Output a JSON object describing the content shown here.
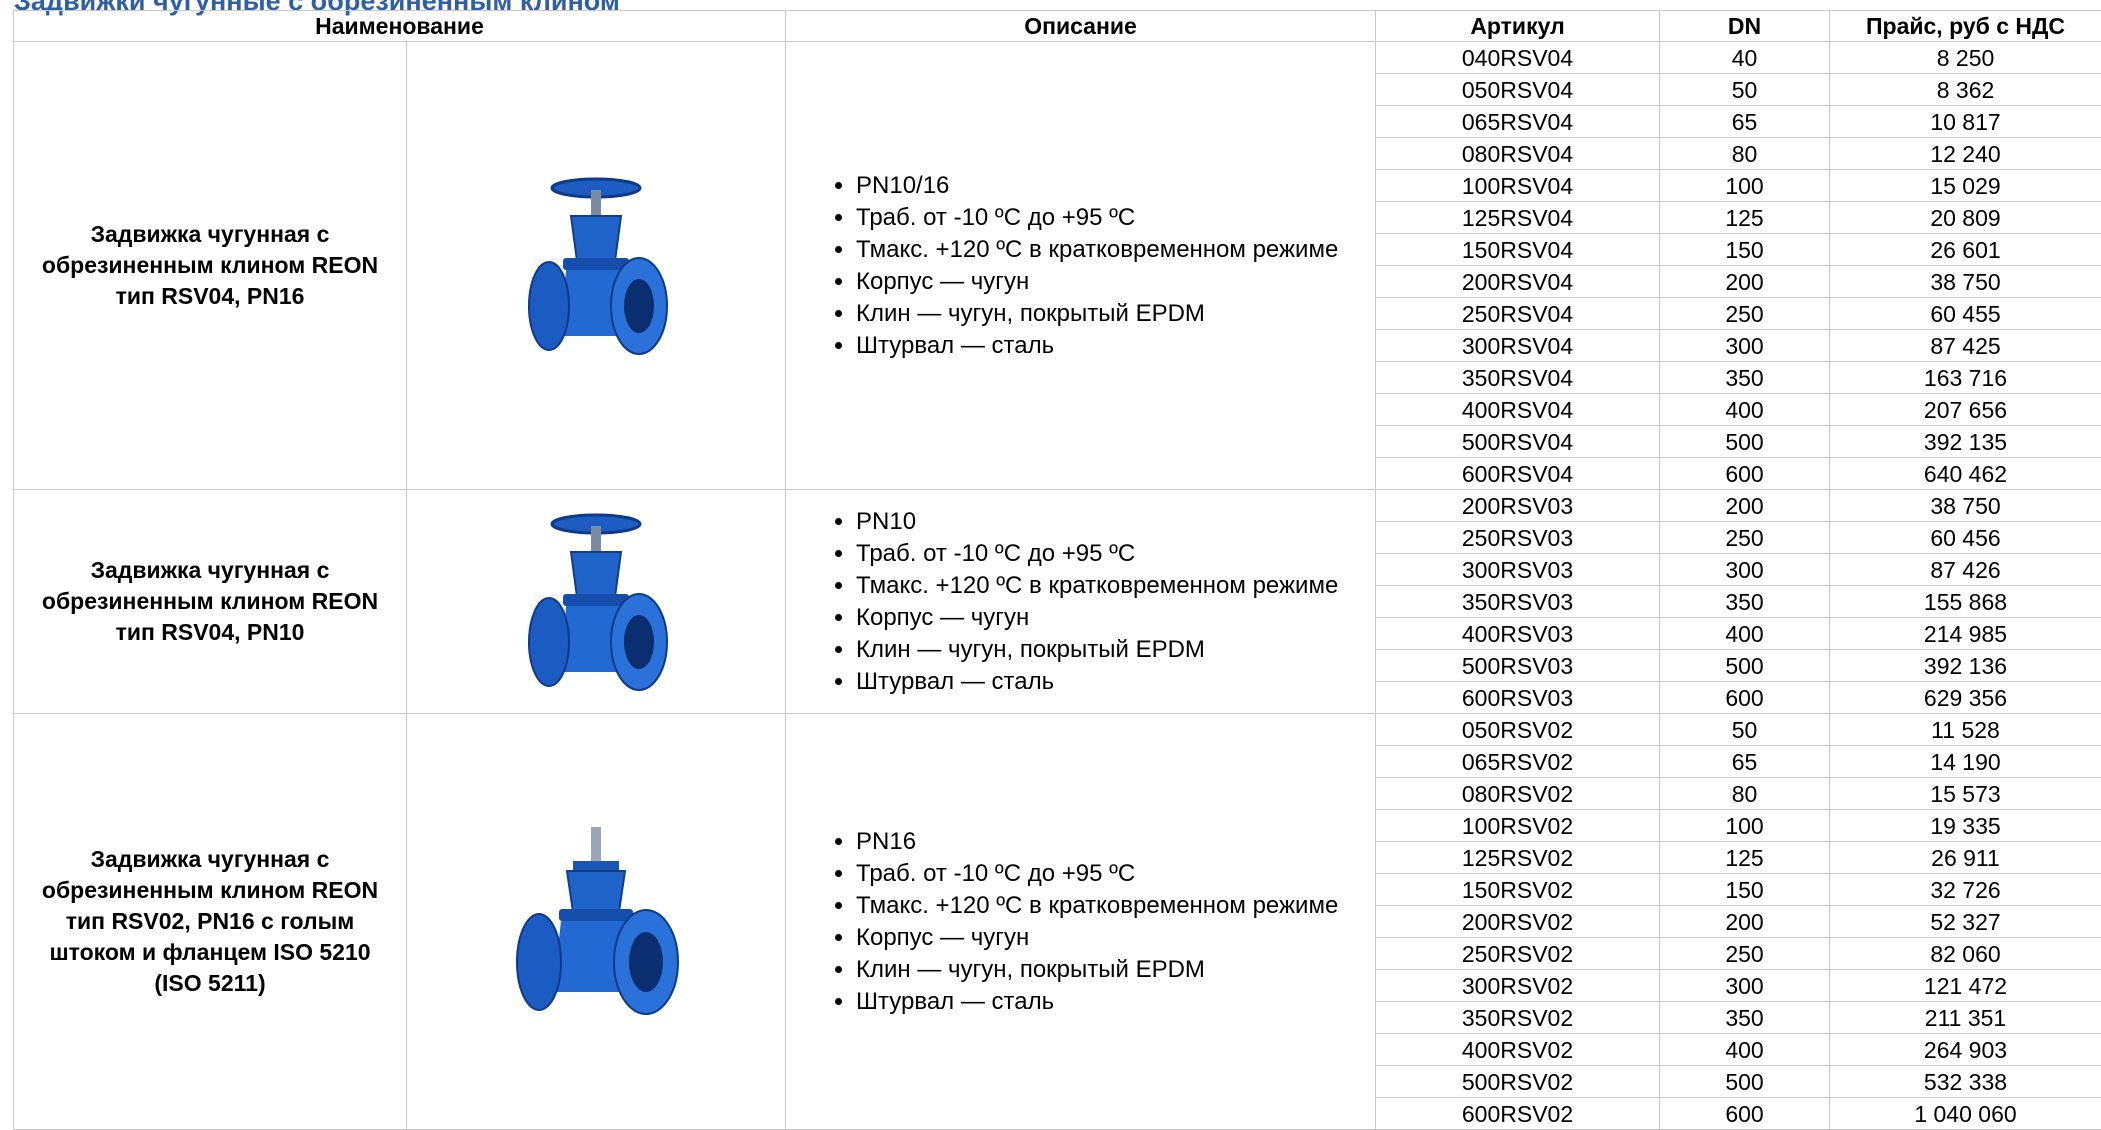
{
  "header": {
    "title": "Задвижки чугунные с обрезиненным клином"
  },
  "table": {
    "columns": [
      "Наименование",
      "Описание",
      "Артикул",
      "DN",
      "Прайс, руб с НДС"
    ],
    "groups": [
      {
        "name": "Задвижка чугунная с обрезиненным клином REON тип RSV04, PN16",
        "description": [
          "PN10/16",
          "Траб. от -10 ºС до +95 ºС",
          "Тмакс. +120 ºС в кратковременном режиме",
          "Корпус — чугун",
          "Клин — чугун, покрытый EPDM",
          "Штурвал — сталь"
        ],
        "rows": [
          [
            "040RSV04",
            40,
            "8 250"
          ],
          [
            "050RSV04",
            50,
            "8 362"
          ],
          [
            "065RSV04",
            65,
            "10 817"
          ],
          [
            "080RSV04",
            80,
            "12 240"
          ],
          [
            "100RSV04",
            100,
            "15 029"
          ],
          [
            "125RSV04",
            125,
            "20 809"
          ],
          [
            "150RSV04",
            150,
            "26 601"
          ],
          [
            "200RSV04",
            200,
            "38 750"
          ],
          [
            "250RSV04",
            250,
            "60 455"
          ],
          [
            "300RSV04",
            300,
            "87 425"
          ],
          [
            "350RSV04",
            350,
            "163 716"
          ],
          [
            "400RSV04",
            400,
            "207 656"
          ],
          [
            "500RSV04",
            500,
            "392 135"
          ],
          [
            "600RSV04",
            600,
            "640 462"
          ]
        ]
      },
      {
        "name": "Задвижка чугунная с обрезиненным клином REON тип RSV04, PN10",
        "description": [
          "PN10",
          "Траб. от -10 ºС до +95 ºС",
          "Тмакс. +120 ºС в кратковременном режиме",
          "Корпус — чугун",
          "Клин — чугун, покрытый EPDM",
          "Штурвал — сталь"
        ],
        "rows": [
          [
            "200RSV03",
            200,
            "38 750"
          ],
          [
            "250RSV03",
            250,
            "60 456"
          ],
          [
            "300RSV03",
            300,
            "87 426"
          ],
          [
            "350RSV03",
            350,
            "155 868"
          ],
          [
            "400RSV03",
            400,
            "214 985"
          ],
          [
            "500RSV03",
            500,
            "392 136"
          ],
          [
            "600RSV03",
            600,
            "629 356"
          ]
        ]
      },
      {
        "name": "Задвижка чугунная с обрезиненным клином REON тип RSV02, PN16 с голым штоком и фланцем ISO 5210 (ISO 5211)",
        "description": [
          "PN16",
          "Траб. от -10 ºС до +95 ºС",
          "Тмакс. +120 ºС в кратковременном режиме",
          "Корпус — чугун",
          "Клин — чугун, покрытый EPDM",
          "Штурвал — сталь"
        ],
        "rows": [
          [
            "050RSV02",
            50,
            "11 528"
          ],
          [
            "065RSV02",
            65,
            "14 190"
          ],
          [
            "080RSV02",
            80,
            "15 573"
          ],
          [
            "100RSV02",
            100,
            "19 335"
          ],
          [
            "125RSV02",
            125,
            "26 911"
          ],
          [
            "150RSV02",
            150,
            "32 726"
          ],
          [
            "200RSV02",
            200,
            "52 327"
          ],
          [
            "250RSV02",
            250,
            "82 060"
          ],
          [
            "300RSV02",
            300,
            "121 472"
          ],
          [
            "350RSV02",
            350,
            "211 351"
          ],
          [
            "400RSV02",
            400,
            "264 903"
          ],
          [
            "500RSV02",
            500,
            "532 338"
          ],
          [
            "600RSV02",
            600,
            "1 040 060"
          ]
        ]
      }
    ]
  }
}
